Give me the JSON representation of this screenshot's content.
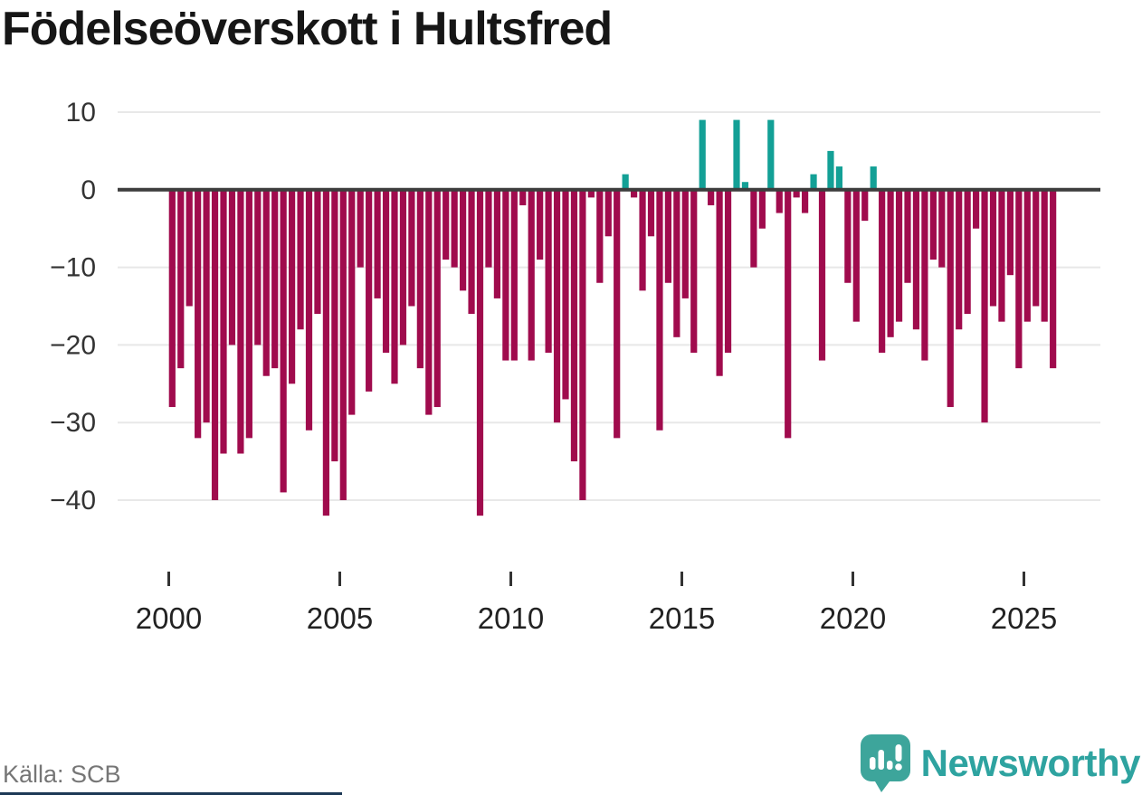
{
  "source": {
    "label": "Källa: SCB"
  },
  "branding": {
    "name": "Newsworthy",
    "icon": "speech-bubble-bar-chart-icon"
  },
  "chart_data": {
    "type": "bar",
    "title": "Födelseöverskott i Hultsfred",
    "xlabel": "",
    "ylabel": "",
    "x_unit": "quarter",
    "period_start": "2000 Q1",
    "period_end": "2025 Q4",
    "grid": "horizontal",
    "legend": "none",
    "ylim": [
      -44,
      12
    ],
    "y_ticks": [
      10,
      0,
      -10,
      -20,
      -30,
      -40
    ],
    "y_tick_labels": [
      "10",
      "0",
      "−10",
      "−20",
      "−30",
      "−40"
    ],
    "x_tick_labels": [
      "2000",
      "2005",
      "2010",
      "2015",
      "2020",
      "2025"
    ],
    "colors": {
      "negative": "#a00b4d",
      "positive": "#13a096",
      "zero_line": "#3d3d3d",
      "gridline": "#e8e8e8"
    },
    "data": [
      {
        "year": 2000,
        "values": [
          -28,
          -23,
          -15,
          -32
        ]
      },
      {
        "year": 2001,
        "values": [
          -30,
          -40,
          -34,
          -20
        ]
      },
      {
        "year": 2002,
        "values": [
          -34,
          -32,
          -20,
          -24
        ]
      },
      {
        "year": 2003,
        "values": [
          -23,
          -39,
          -25,
          -18
        ]
      },
      {
        "year": 2004,
        "values": [
          -31,
          -16,
          -42,
          -35
        ]
      },
      {
        "year": 2005,
        "values": [
          -40,
          -29,
          -10,
          -26
        ]
      },
      {
        "year": 2006,
        "values": [
          -14,
          -21,
          -25,
          -20
        ]
      },
      {
        "year": 2007,
        "values": [
          -15,
          -23,
          -29,
          -28
        ]
      },
      {
        "year": 2008,
        "values": [
          -9,
          -10,
          -13,
          -16
        ]
      },
      {
        "year": 2009,
        "values": [
          -42,
          -10,
          -14,
          -22
        ]
      },
      {
        "year": 2010,
        "values": [
          -22,
          -2,
          -22,
          -9
        ]
      },
      {
        "year": 2011,
        "values": [
          -21,
          -30,
          -27,
          -35
        ]
      },
      {
        "year": 2012,
        "values": [
          -40,
          -1,
          -12,
          -6
        ]
      },
      {
        "year": 2013,
        "values": [
          -32,
          2,
          -1,
          -13
        ]
      },
      {
        "year": 2014,
        "values": [
          -6,
          -31,
          -12,
          -19
        ]
      },
      {
        "year": 2015,
        "values": [
          -14,
          -21,
          9,
          -2
        ]
      },
      {
        "year": 2016,
        "values": [
          -24,
          -21,
          9,
          1
        ]
      },
      {
        "year": 2017,
        "values": [
          -10,
          -5,
          9,
          -3
        ]
      },
      {
        "year": 2018,
        "values": [
          -32,
          -1,
          -3,
          2
        ]
      },
      {
        "year": 2019,
        "values": [
          -22,
          5,
          3,
          -12
        ]
      },
      {
        "year": 2020,
        "values": [
          -17,
          -4,
          3,
          -21
        ]
      },
      {
        "year": 2021,
        "values": [
          -19,
          -17,
          -12,
          -18
        ]
      },
      {
        "year": 2022,
        "values": [
          -22,
          -9,
          -10,
          -28
        ]
      },
      {
        "year": 2023,
        "values": [
          -18,
          -16,
          -5,
          -30
        ]
      },
      {
        "year": 2024,
        "values": [
          -15,
          -17,
          -11,
          -23
        ]
      },
      {
        "year": 2025,
        "values": [
          -17,
          -15,
          -17,
          -23
        ]
      }
    ]
  }
}
